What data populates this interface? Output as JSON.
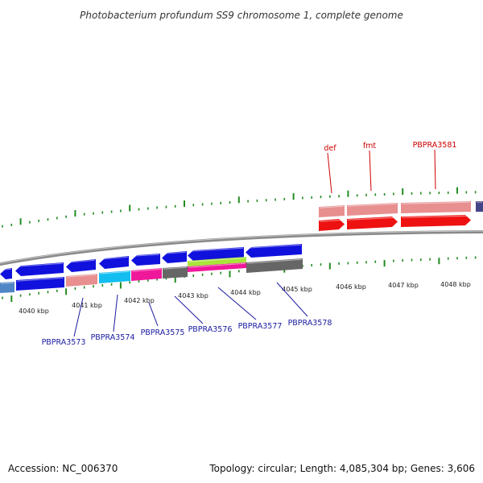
{
  "title": "Photobacterium profundum SS9 chromosome 1, complete genome",
  "footer": {
    "accession": "Accession: NC_006370",
    "summary": "Topology: circular; Length: 4,085,304 bp; Genes: 3,606"
  },
  "colors": {
    "tick": "#228b22",
    "backbone": "#8a8a8a",
    "top_label": "#cc0000",
    "bottom_label": "#1a1aa0",
    "red": "#ee1111",
    "salmon": "#e88f8f",
    "blue": "#1111dd",
    "steel": "#4f86c6",
    "cyan": "#12bdf0",
    "magenta": "#f0189a",
    "gray": "#666666",
    "lime": "#a8e63a",
    "navy": "#444488"
  },
  "kbp_labels": [
    "4040 kbp",
    "4041 kbp",
    "4042 kbp",
    "4043 kbp",
    "4044 kbp",
    "4045 kbp",
    "4046 kbp",
    "4047 kbp",
    "4048 kbp"
  ],
  "top_gene_labels": [
    "def",
    "fmt",
    "PBPRA3581"
  ],
  "bottom_gene_labels": [
    "PBPRA3573",
    "PBPRA3574",
    "PBPRA3575",
    "PBPRA3576",
    "PBPRA3577",
    "PBPRA3578"
  ]
}
